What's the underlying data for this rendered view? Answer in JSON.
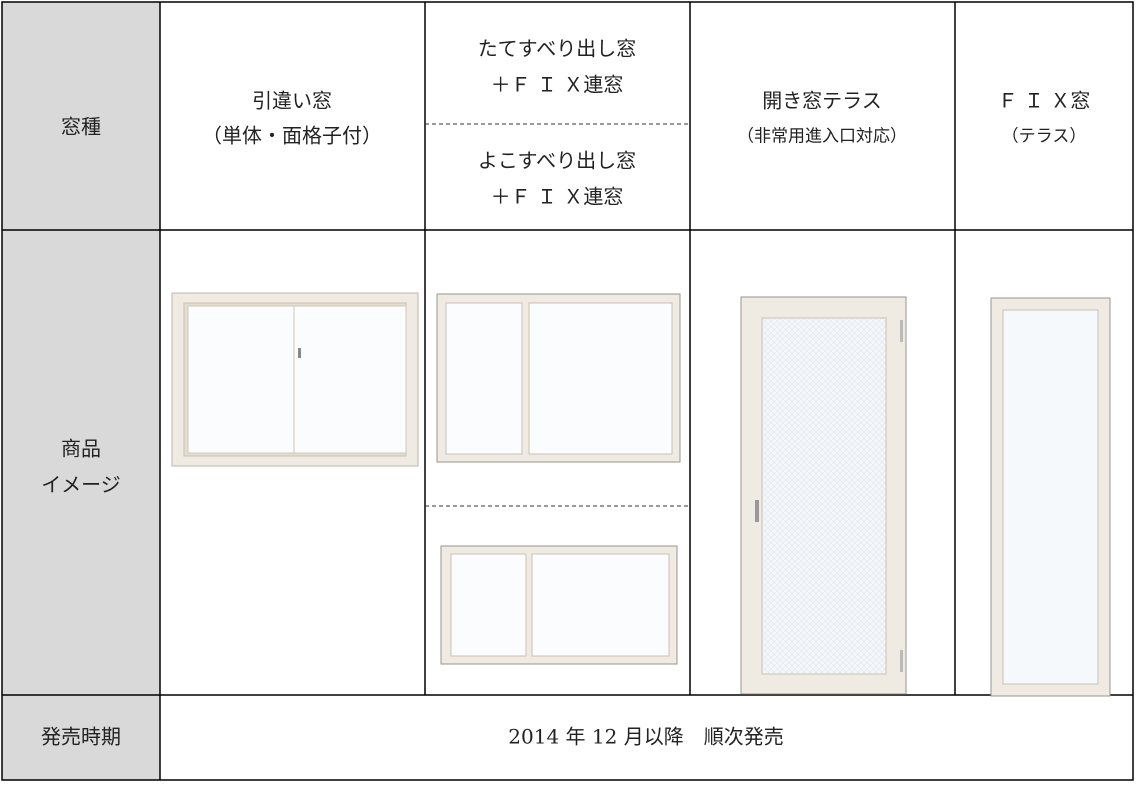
{
  "header": {
    "label": "窓種",
    "types": [
      {
        "lines": [
          "引違い窓",
          "（単体・面格子付）"
        ]
      },
      {
        "variants": [
          [
            "たてすべり出し窓",
            "＋Ｆ Ｉ Ｘ連窓"
          ],
          [
            "よこすべり出し窓",
            "＋Ｆ Ｉ Ｘ連窓"
          ]
        ]
      },
      {
        "lines": [
          "開き窓テラス",
          "（非常用進入口対応）"
        ]
      },
      {
        "lines": [
          "Ｆ Ｉ Ｘ窓",
          "（テラス）"
        ]
      }
    ]
  },
  "image_row": {
    "label": [
      "商品",
      "イメージ"
    ]
  },
  "release_row": {
    "label": "発売時期",
    "text": "2014 年 12 月以降　順次発売"
  }
}
